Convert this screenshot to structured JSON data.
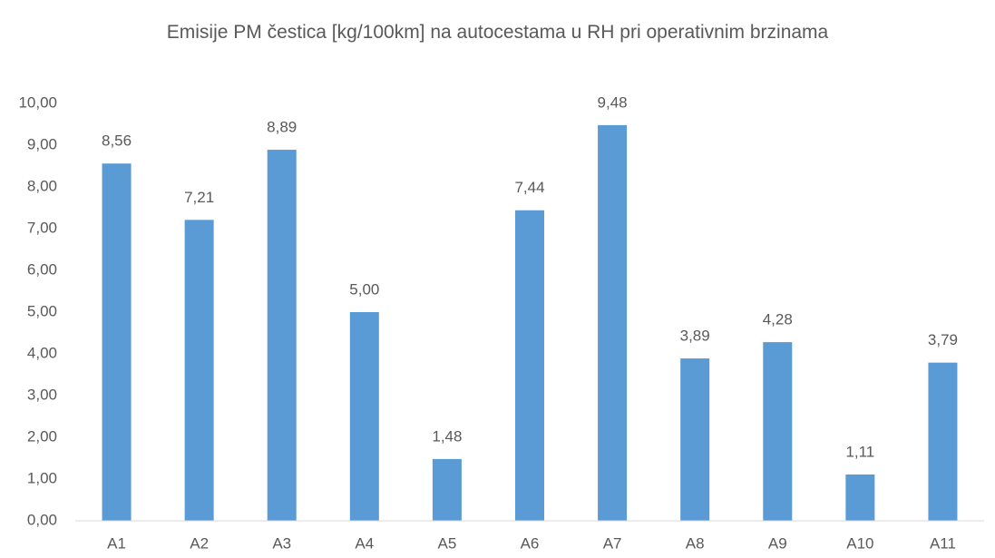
{
  "chart_data": {
    "type": "bar",
    "title": "Emisije PM čestica [kg/100km] na autocestama u RH pri operativnim brzinama",
    "categories": [
      "A1",
      "A2",
      "A3",
      "A4",
      "A5",
      "A6",
      "A7",
      "A8",
      "A9",
      "A10",
      "A11"
    ],
    "values": [
      8.56,
      7.21,
      8.89,
      5.0,
      1.48,
      7.44,
      9.48,
      3.89,
      4.28,
      1.11,
      3.79
    ],
    "value_labels": [
      "8,56",
      "7,21",
      "8,89",
      "5,00",
      "1,48",
      "7,44",
      "9,48",
      "3,89",
      "4,28",
      "1,11",
      "3,79"
    ],
    "color": "#5b9bd5",
    "ylim": [
      0,
      10
    ],
    "yticks": [
      {
        "value": 0,
        "label": "0,00"
      },
      {
        "value": 1,
        "label": "1,00"
      },
      {
        "value": 2,
        "label": "2,00"
      },
      {
        "value": 3,
        "label": "3,00"
      },
      {
        "value": 4,
        "label": "4,00"
      },
      {
        "value": 5,
        "label": "5,00"
      },
      {
        "value": 6,
        "label": "6,00"
      },
      {
        "value": 7,
        "label": "7,00"
      },
      {
        "value": 8,
        "label": "8,00"
      },
      {
        "value": 9,
        "label": "9,00"
      },
      {
        "value": 10,
        "label": "10,00"
      }
    ],
    "grid": false
  }
}
